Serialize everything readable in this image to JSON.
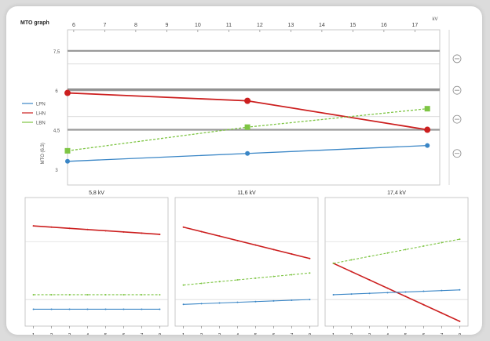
{
  "page_title": "MTO graph",
  "top_axis_unit": "kV",
  "legend": [
    {
      "label": "LPN",
      "color": "#3a86c6"
    },
    {
      "label": "LHN",
      "color": "#cc1f1f"
    },
    {
      "label": "LBN",
      "color": "#7ec544"
    }
  ],
  "right_icons": [
    "circle-icon",
    "circle-icon",
    "circle-icon",
    "circle-icon"
  ],
  "chart_data": [
    {
      "type": "line",
      "ylabel": "MTO (6.3)",
      "x_ticks": [
        "6",
        "7",
        "8",
        "9",
        "10",
        "11",
        "12",
        "13",
        "14",
        "15",
        "16",
        "17"
      ],
      "y_ticks": [
        "7,5",
        "6",
        "4,5",
        "3"
      ],
      "xlim": [
        5.8,
        17.8
      ],
      "ylim": [
        2.4,
        8.3
      ],
      "reference_lines": [
        7.5,
        6.0,
        4.5
      ],
      "series": [
        {
          "name": "LPN",
          "color": "#3a86c6",
          "x": [
            5.8,
            11.6,
            17.4
          ],
          "y": [
            3.3,
            3.6,
            3.9
          ]
        },
        {
          "name": "LHN",
          "color": "#cc1f1f",
          "x": [
            5.8,
            11.6,
            17.4
          ],
          "y": [
            5.9,
            5.6,
            4.5
          ]
        },
        {
          "name": "LBN",
          "color": "#7ec544",
          "x": [
            5.8,
            11.6,
            17.4
          ],
          "y": [
            3.7,
            4.6,
            5.3
          ]
        }
      ]
    },
    {
      "type": "line",
      "title": "5,8 kV",
      "x_ticks": [
        "1",
        "2",
        "3",
        "4",
        "5",
        "6",
        "7",
        "8"
      ],
      "xlim": [
        0.8,
        8.2
      ],
      "ylim": [
        0,
        10
      ],
      "series": [
        {
          "name": "LHN",
          "color": "#cc1f1f",
          "x": [
            1,
            8
          ],
          "y": [
            8.3,
            7.6
          ]
        },
        {
          "name": "LBN",
          "color": "#7ec544",
          "x": [
            1,
            8
          ],
          "y": [
            2.6,
            2.6
          ]
        },
        {
          "name": "LPN",
          "color": "#3a86c6",
          "x": [
            1,
            8
          ],
          "y": [
            1.4,
            1.4
          ]
        }
      ]
    },
    {
      "type": "line",
      "title": "11,6 kV",
      "x_ticks": [
        "1",
        "2",
        "3",
        "4",
        "5",
        "6",
        "7",
        "8"
      ],
      "xlim": [
        0.8,
        8.2
      ],
      "ylim": [
        0,
        10
      ],
      "series": [
        {
          "name": "LHN",
          "color": "#cc1f1f",
          "x": [
            1,
            8
          ],
          "y": [
            8.2,
            5.6
          ]
        },
        {
          "name": "LBN",
          "color": "#7ec544",
          "x": [
            1,
            8
          ],
          "y": [
            3.4,
            4.4
          ]
        },
        {
          "name": "LPN",
          "color": "#3a86c6",
          "x": [
            1,
            8
          ],
          "y": [
            1.8,
            2.2
          ]
        }
      ]
    },
    {
      "type": "line",
      "title": "17,4 kV",
      "x_ticks": [
        "1",
        "2",
        "3",
        "4",
        "5",
        "6",
        "7",
        "8"
      ],
      "xlim": [
        0.8,
        8.2
      ],
      "ylim": [
        0,
        10
      ],
      "series": [
        {
          "name": "LHN",
          "color": "#cc1f1f",
          "x": [
            1,
            8
          ],
          "y": [
            5.2,
            0.4
          ]
        },
        {
          "name": "LBN",
          "color": "#7ec544",
          "x": [
            1,
            8
          ],
          "y": [
            5.2,
            7.2
          ]
        },
        {
          "name": "LPN",
          "color": "#3a86c6",
          "x": [
            1,
            8
          ],
          "y": [
            2.6,
            3.0
          ]
        }
      ]
    }
  ]
}
